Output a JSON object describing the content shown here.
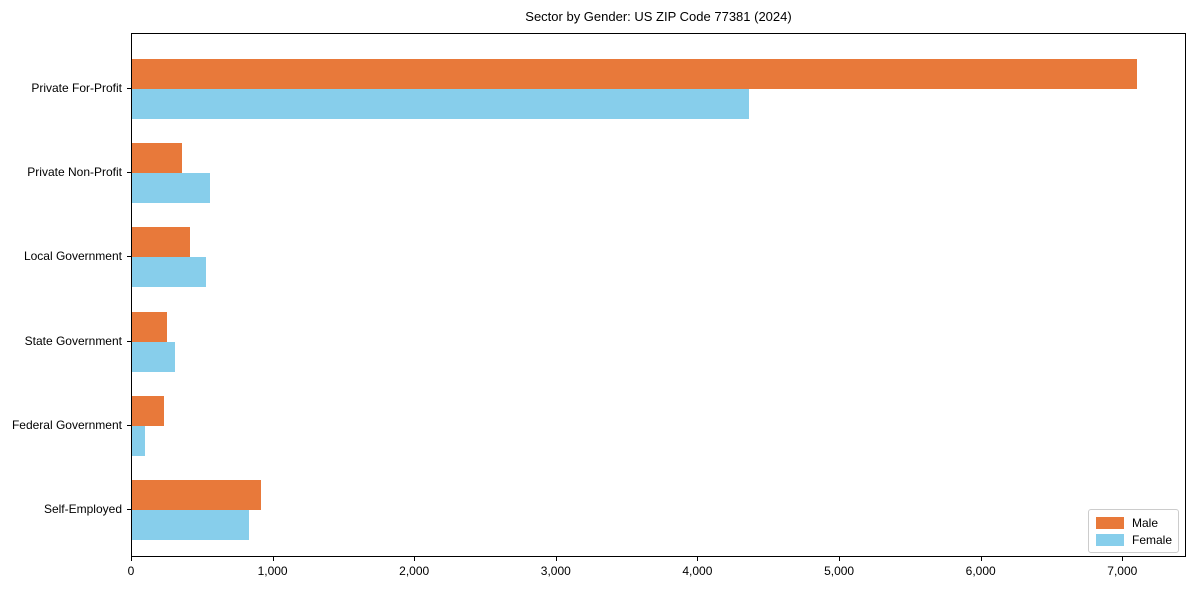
{
  "title": "Sector by Gender: US ZIP Code 77381 (2024)",
  "chart_data": {
    "type": "bar",
    "orientation": "horizontal",
    "title": "Sector by Gender: US ZIP Code 77381 (2024)",
    "categories": [
      "Private For-Profit",
      "Private Non-Profit",
      "Local Government",
      "State Government",
      "Federal Government",
      "Self-Employed"
    ],
    "series": [
      {
        "name": "Male",
        "color": "#E8793A",
        "values": [
          7100,
          350,
          410,
          250,
          225,
          910
        ]
      },
      {
        "name": "Female",
        "color": "#87CEEB",
        "values": [
          4360,
          550,
          520,
          300,
          90,
          825
        ]
      }
    ],
    "xlabel": "",
    "ylabel": "",
    "xlim": [
      0,
      7450
    ],
    "x_ticks": [
      0,
      1000,
      2000,
      3000,
      4000,
      5000,
      6000,
      7000
    ],
    "x_tick_labels": [
      "0",
      "1,000",
      "2,000",
      "3,000",
      "4,000",
      "5,000",
      "6,000",
      "7,000"
    ],
    "legend_position": "lower right",
    "grid": false,
    "background_color": "#ffffff",
    "spine_color": "#000000"
  }
}
